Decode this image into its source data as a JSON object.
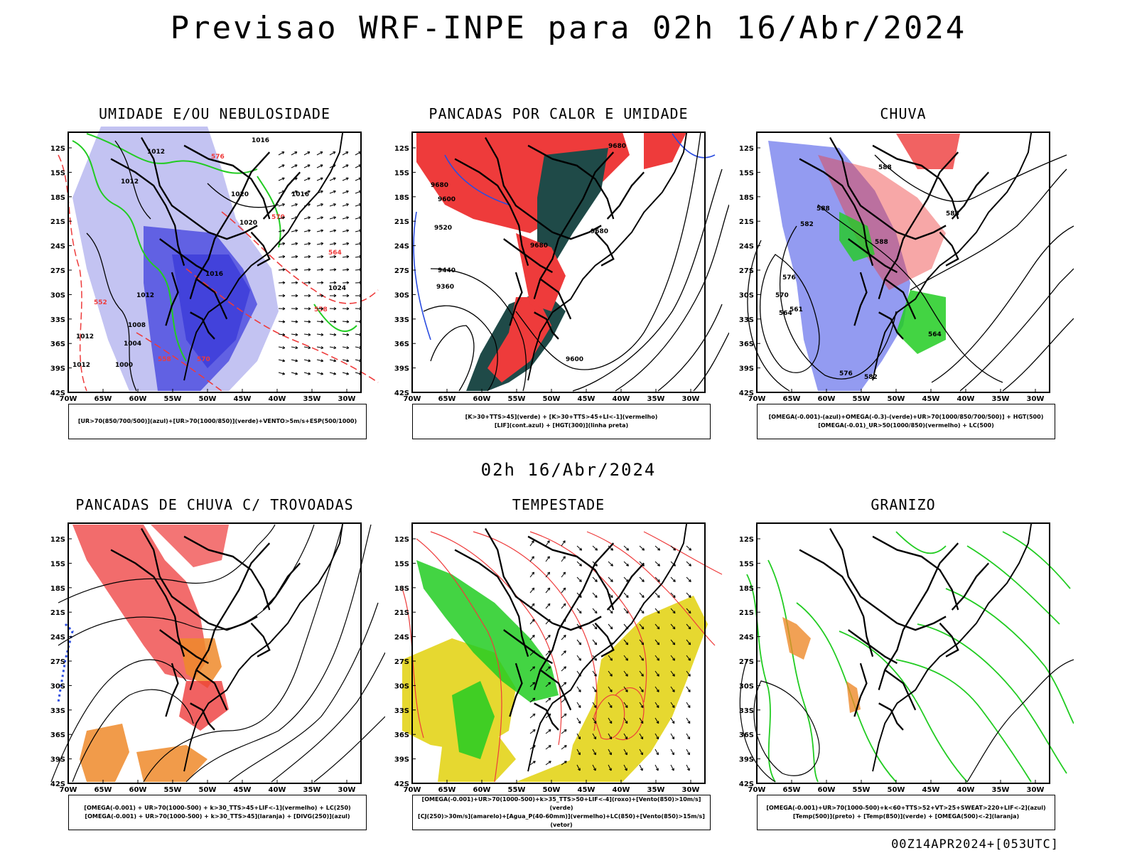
{
  "header": {
    "title": "Previsao WRF-INPE  para 02h 16/Abr/2024"
  },
  "middle": {
    "time_label": "02h 16/Abr/2024"
  },
  "footer": {
    "run_label": "00Z14APR2024+[053UTC]"
  },
  "axes": {
    "lat_labels": [
      "12S",
      "15S",
      "18S",
      "21S",
      "24S",
      "27S",
      "30S",
      "33S",
      "36S",
      "39S",
      "42S"
    ],
    "lon_labels": [
      "70W",
      "65W",
      "60W",
      "55W",
      "50W",
      "45W",
      "40W",
      "35W",
      "30W"
    ]
  },
  "panels": [
    {
      "title": "UMIDADE E/OU NEBULOSIDADE",
      "legend_lines": [
        "[UR>70(850/700/500)](azul)+[UR>70(1000/850)](verde)+VENTO>5m/s+ESP(500/1000)"
      ]
    },
    {
      "title": "PANCADAS POR CALOR E UMIDADE",
      "legend_lines": [
        "[K>30+TTS>45](verde) + [K>30+TTS>45+LI<-1](vermelho)",
        "[LIF](cont.azul) + [HGT(300)](linha preta)"
      ]
    },
    {
      "title": "CHUVA",
      "legend_lines": [
        "[OMEGA(-0.001)-(azul)+OMEGA(-0.3)-(verde)+UR>70(1000/850/700/500)] + HGT(500)",
        "[OMEGA(-0.01)_UR>50(1000/850)(vermelho) + LC(500)"
      ]
    },
    {
      "title": "PANCADAS DE CHUVA C/ TROVOADAS",
      "legend_lines": [
        "[OMEGA(-0.001) + UR>70(1000-500) + k>30_TTS>45+LIF<-1](vermelho) + LC(250)",
        "[OMEGA(-0.001) + UR>70(1000-500) + k>30_TTS>45](laranja) + [DIVG(250)](azul)"
      ]
    },
    {
      "title": "TEMPESTADE",
      "legend_lines": [
        "[OMEGA(-0.001)+UR>70(1000-500)+k>35_TTS>50+LIF<-4](roxo)+[Vento(850)>10m/s](verde)",
        "[CJ(250)>30m/s](amarelo)+[Agua_P(40-60mm)](vermelho)+LC(850)+[Vento(850)>15m/s](vetor)"
      ]
    },
    {
      "title": "GRANIZO",
      "legend_lines": [
        "[OMEGA(-0.001)+UR>70(1000-500)+k<60+TTS>52+VT>25+SWEAT>220+LIF<-2](azul)",
        "[Temp(500)](preto) + [Temp(850)](verde) + [OMEGA(500)<-2](laranja)"
      ]
    }
  ],
  "contour_labels": {
    "p0": [
      "1012",
      "1012",
      "1016",
      "1020",
      "1020",
      "1016",
      "1016",
      "1012",
      "1008",
      "1004",
      "1012",
      "1012",
      "1000",
      "1024",
      "576",
      "570",
      "564",
      "558",
      "552",
      "558",
      "570"
    ],
    "p1": [
      "9680",
      "9680",
      "9600",
      "9520",
      "9440",
      "9360",
      "9680",
      "9680",
      "9600"
    ],
    "p2": [
      "588",
      "588",
      "588",
      "582",
      "576",
      "570",
      "564",
      "564",
      "561",
      "582",
      "576",
      "588"
    ]
  },
  "colors": {
    "blue_light": "#b8b8f0",
    "blue": "#5050e0",
    "green": "#22cc22",
    "red": "#ee3b3b",
    "dark_teal": "#1f4a48",
    "orange": "#ee8a2a",
    "yellow": "#e6d830",
    "contour": "#000000"
  }
}
